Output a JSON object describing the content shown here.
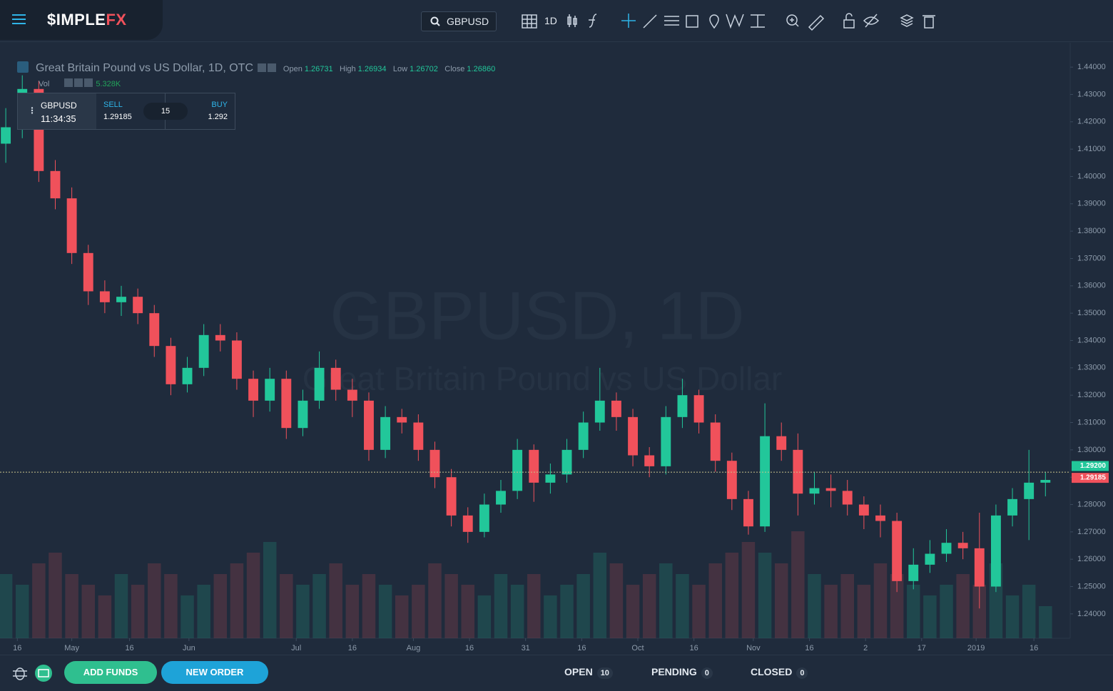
{
  "header": {
    "logo": "$IMPLE",
    "logo_accent": "FX",
    "search": "GBPUSD",
    "interval": "1D"
  },
  "legend": {
    "title": "Great Britain Pound vs US Dollar, 1D, OTC",
    "open_label": "Open",
    "open": "1.26731",
    "high_label": "High",
    "high": "1.26934",
    "low_label": "Low",
    "low": "1.26702",
    "close_label": "Close",
    "close": "1.26860",
    "vol_label": "Vol",
    "vol": "5.328K"
  },
  "quote": {
    "symbol": "GBPUSD",
    "time": "11:34:35",
    "sell_label": "SELL",
    "sell": "1.29185",
    "spread": "15",
    "buy_label": "BUY",
    "buy": "1.292"
  },
  "watermark": {
    "title": "GBPUSD, 1D",
    "subtitle": "Great Britain Pound vs US Dollar"
  },
  "footer": {
    "add_funds": "ADD FUNDS",
    "new_order": "NEW ORDER",
    "open_label": "OPEN",
    "open": "10",
    "pending_label": "PENDING",
    "pending": "0",
    "closed_label": "CLOSED",
    "closed": "0"
  },
  "chart_data": {
    "type": "candlestick",
    "up_color": "#22c79a",
    "down_color": "#f0515b",
    "open": [
      1.412,
      1.418,
      1.432,
      1.402,
      1.392,
      1.372,
      1.358,
      1.354,
      1.356,
      1.35,
      1.338,
      1.324,
      1.33,
      1.342,
      1.34,
      1.326,
      1.318,
      1.326,
      1.308,
      1.318,
      1.33,
      1.322,
      1.318,
      1.3,
      1.312,
      1.31,
      1.3,
      1.29,
      1.276,
      1.27,
      1.28,
      1.285,
      1.3,
      1.288,
      1.291,
      1.3,
      1.31,
      1.318,
      1.312,
      1.298,
      1.294,
      1.312,
      1.32,
      1.31,
      1.296,
      1.282,
      1.272,
      1.305,
      1.3,
      1.284,
      1.286,
      1.285,
      1.28,
      1.276,
      1.274,
      1.252,
      1.258,
      1.262,
      1.266,
      1.264,
      1.25,
      1.276,
      1.282,
      1.288
    ],
    "high": [
      1.425,
      1.437,
      1.435,
      1.406,
      1.396,
      1.375,
      1.362,
      1.36,
      1.359,
      1.353,
      1.341,
      1.334,
      1.346,
      1.346,
      1.343,
      1.329,
      1.33,
      1.329,
      1.322,
      1.336,
      1.333,
      1.326,
      1.321,
      1.316,
      1.315,
      1.313,
      1.303,
      1.293,
      1.279,
      1.284,
      1.289,
      1.304,
      1.302,
      1.295,
      1.304,
      1.314,
      1.33,
      1.321,
      1.315,
      1.301,
      1.316,
      1.326,
      1.322,
      1.313,
      1.299,
      1.285,
      1.317,
      1.31,
      1.306,
      1.292,
      1.291,
      1.289,
      1.283,
      1.28,
      1.277,
      1.264,
      1.267,
      1.271,
      1.27,
      1.277,
      1.28,
      1.286,
      1.3,
      1.292
    ],
    "low": [
      1.405,
      1.414,
      1.398,
      1.388,
      1.368,
      1.353,
      1.35,
      1.349,
      1.346,
      1.334,
      1.32,
      1.321,
      1.327,
      1.336,
      1.322,
      1.312,
      1.314,
      1.304,
      1.305,
      1.315,
      1.318,
      1.312,
      1.296,
      1.297,
      1.306,
      1.296,
      1.286,
      1.272,
      1.266,
      1.268,
      1.277,
      1.282,
      1.281,
      1.284,
      1.288,
      1.297,
      1.307,
      1.307,
      1.294,
      1.29,
      1.291,
      1.308,
      1.306,
      1.292,
      1.278,
      1.269,
      1.27,
      1.296,
      1.276,
      1.28,
      1.279,
      1.276,
      1.271,
      1.268,
      1.248,
      1.249,
      1.255,
      1.259,
      1.26,
      1.242,
      1.248,
      1.272,
      1.267,
      1.283
    ],
    "close": [
      1.418,
      1.432,
      1.402,
      1.392,
      1.372,
      1.358,
      1.354,
      1.356,
      1.35,
      1.338,
      1.324,
      1.33,
      1.342,
      1.34,
      1.326,
      1.318,
      1.326,
      1.308,
      1.318,
      1.33,
      1.322,
      1.318,
      1.3,
      1.312,
      1.31,
      1.3,
      1.29,
      1.276,
      1.27,
      1.28,
      1.285,
      1.3,
      1.288,
      1.291,
      1.3,
      1.31,
      1.318,
      1.312,
      1.298,
      1.294,
      1.312,
      1.32,
      1.31,
      1.296,
      1.282,
      1.272,
      1.305,
      1.3,
      1.284,
      1.286,
      1.285,
      1.28,
      1.276,
      1.274,
      1.252,
      1.258,
      1.262,
      1.266,
      1.264,
      1.25,
      1.276,
      1.282,
      1.288,
      1.289
    ],
    "volume": [
      6,
      5,
      7,
      8,
      6,
      5,
      4,
      6,
      5,
      7,
      6,
      4,
      5,
      6,
      7,
      8,
      9,
      6,
      5,
      6,
      7,
      5,
      6,
      5,
      4,
      5,
      7,
      6,
      5,
      4,
      6,
      5,
      6,
      4,
      5,
      6,
      8,
      7,
      5,
      6,
      7,
      6,
      5,
      7,
      8,
      9,
      8,
      7,
      10,
      6,
      5,
      6,
      5,
      7,
      6,
      5,
      4,
      5,
      6,
      5,
      7,
      4,
      5,
      3
    ],
    "volume_ylim": [
      0,
      11
    ],
    "xlim": [
      -0.35,
      64.5
    ],
    "ylim": [
      1.2311,
      1.4489
    ],
    "xticks": [
      {
        "value": 0.7,
        "label": "16"
      },
      {
        "value": 4.0,
        "label": "May"
      },
      {
        "value": 7.5,
        "label": "16"
      },
      {
        "value": 11.1,
        "label": "Jun"
      },
      {
        "value": 17.6,
        "label": "Jul"
      },
      {
        "value": 21.0,
        "label": "16"
      },
      {
        "value": 24.7,
        "label": "Aug"
      },
      {
        "value": 28.1,
        "label": "16"
      },
      {
        "value": 31.5,
        "label": "31"
      },
      {
        "value": 34.9,
        "label": "16"
      },
      {
        "value": 38.3,
        "label": "Oct"
      },
      {
        "value": 41.7,
        "label": "16"
      },
      {
        "value": 45.3,
        "label": "Nov"
      },
      {
        "value": 48.7,
        "label": "16"
      },
      {
        "value": 52.1,
        "label": "2"
      },
      {
        "value": 55.5,
        "label": "17"
      },
      {
        "value": 58.8,
        "label": "2019"
      },
      {
        "value": 62.3,
        "label": "16"
      }
    ],
    "yticks": [
      {
        "value": 1.24,
        "label": "1.24000"
      },
      {
        "value": 1.25,
        "label": "1.25000"
      },
      {
        "value": 1.26,
        "label": "1.26000"
      },
      {
        "value": 1.27,
        "label": "1.27000"
      },
      {
        "value": 1.28,
        "label": "1.28000"
      },
      {
        "value": 1.29,
        "label": "1.29000"
      },
      {
        "value": 1.3,
        "label": "1.30000"
      },
      {
        "value": 1.31,
        "label": "1.31000"
      },
      {
        "value": 1.32,
        "label": "1.32000"
      },
      {
        "value": 1.33,
        "label": "1.33000"
      },
      {
        "value": 1.34,
        "label": "1.34000"
      },
      {
        "value": 1.35,
        "label": "1.35000"
      },
      {
        "value": 1.36,
        "label": "1.36000"
      },
      {
        "value": 1.37,
        "label": "1.37000"
      },
      {
        "value": 1.38,
        "label": "1.38000"
      },
      {
        "value": 1.39,
        "label": "1.39000"
      },
      {
        "value": 1.4,
        "label": "1.40000"
      },
      {
        "value": 1.41,
        "label": "1.41000"
      },
      {
        "value": 1.42,
        "label": "1.42000"
      },
      {
        "value": 1.43,
        "label": "1.43000"
      },
      {
        "value": 1.44,
        "label": "1.44000"
      }
    ],
    "price_labels": [
      {
        "value": 1.292,
        "label": "1.29200",
        "color": "#22c79a"
      },
      {
        "value": 1.29185,
        "label": "1.29185",
        "color": "#f0515b"
      }
    ]
  }
}
